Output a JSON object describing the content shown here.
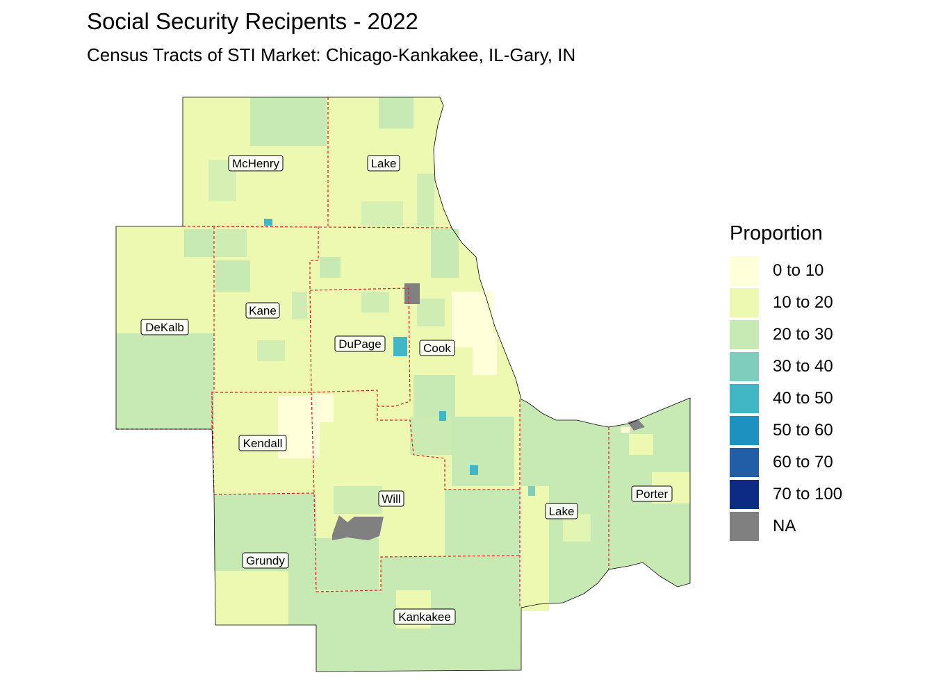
{
  "title": "Social Security Recipents - 2022",
  "subtitle": "Census Tracts of STI Market: Chicago-Kankakee, IL-Gary, IN",
  "legend": {
    "title": "Proportion",
    "items": [
      {
        "label": "0 to 10",
        "color": "#ffffd9"
      },
      {
        "label": "10 to 20",
        "color": "#edf8b1"
      },
      {
        "label": "20 to 30",
        "color": "#c7e9b4"
      },
      {
        "label": "30 to 40",
        "color": "#7fcdbb"
      },
      {
        "label": "40 to 50",
        "color": "#41b6c4"
      },
      {
        "label": "50 to 60",
        "color": "#1d91c0"
      },
      {
        "label": "60 to 70",
        "color": "#225ea8"
      },
      {
        "label": "70 to 100",
        "color": "#0c2c84"
      },
      {
        "label": "NA",
        "color": "#808080"
      }
    ]
  },
  "counties": [
    {
      "name": "McHenry",
      "class": "10 to 20"
    },
    {
      "name": "Lake",
      "class": "10 to 20"
    },
    {
      "name": "DeKalb",
      "class": "10 to 20"
    },
    {
      "name": "Kane",
      "class": "10 to 20"
    },
    {
      "name": "DuPage",
      "class": "10 to 20"
    },
    {
      "name": "Cook",
      "class": "10 to 20"
    },
    {
      "name": "Kendall",
      "class": "10 to 20"
    },
    {
      "name": "Will",
      "class": "10 to 20"
    },
    {
      "name": "Grundy",
      "class": "20 to 30"
    },
    {
      "name": "Kankakee",
      "class": "20 to 30"
    },
    {
      "name": "Lake",
      "class": "20 to 30"
    },
    {
      "name": "Porter",
      "class": "20 to 30"
    }
  ],
  "colors": {
    "county_border": "#e41a1c",
    "lake": "#ffffff",
    "outline": "#000000"
  }
}
